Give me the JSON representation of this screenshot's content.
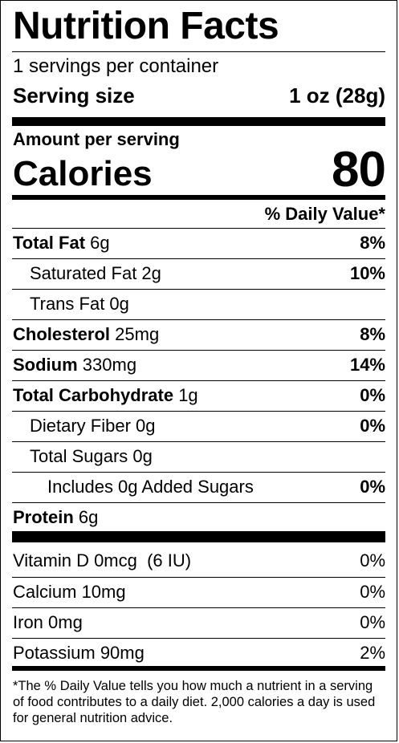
{
  "label": {
    "title": "Nutrition Facts",
    "servings_per_container": "1 servings per container",
    "serving_size_label": "Serving size",
    "serving_size_value": "1 oz (28g)",
    "amount_per_serving": "Amount per serving",
    "calories_label": "Calories",
    "calories_value": "80",
    "daily_value_header": "% Daily Value*"
  },
  "nutrients": [
    {
      "name": "Total Fat",
      "amount": "6g",
      "dv": "8%"
    },
    {
      "name": "Saturated Fat 2g",
      "dv": "10%"
    },
    {
      "name": "Trans Fat 0g",
      "dv": ""
    },
    {
      "name": "Cholesterol",
      "amount": "25mg",
      "dv": "8%"
    },
    {
      "name": "Sodium",
      "amount": "330mg",
      "dv": "14%"
    },
    {
      "name": "Total Carbohydrate",
      "amount": "1g",
      "dv": "0%"
    },
    {
      "name": "Dietary Fiber 0g",
      "dv": "0%"
    },
    {
      "name": "Total Sugars 0g",
      "dv": ""
    },
    {
      "name": "Includes 0g Added Sugars",
      "dv": "0%"
    },
    {
      "name": "Protein",
      "amount": "6g",
      "dv": ""
    }
  ],
  "vitamins": [
    {
      "name": "Vitamin D 0mcg  (6 IU)",
      "dv": "0%"
    },
    {
      "name": "Calcium 10mg",
      "dv": "0%"
    },
    {
      "name": "Iron 0mg",
      "dv": "0%"
    },
    {
      "name": "Potassium 90mg",
      "dv": "2%"
    }
  ],
  "footnote": "*The % Daily Value tells you how much a nutrient in a serving of food contributes to a daily diet. 2,000 calories a day is used for general nutrition advice."
}
